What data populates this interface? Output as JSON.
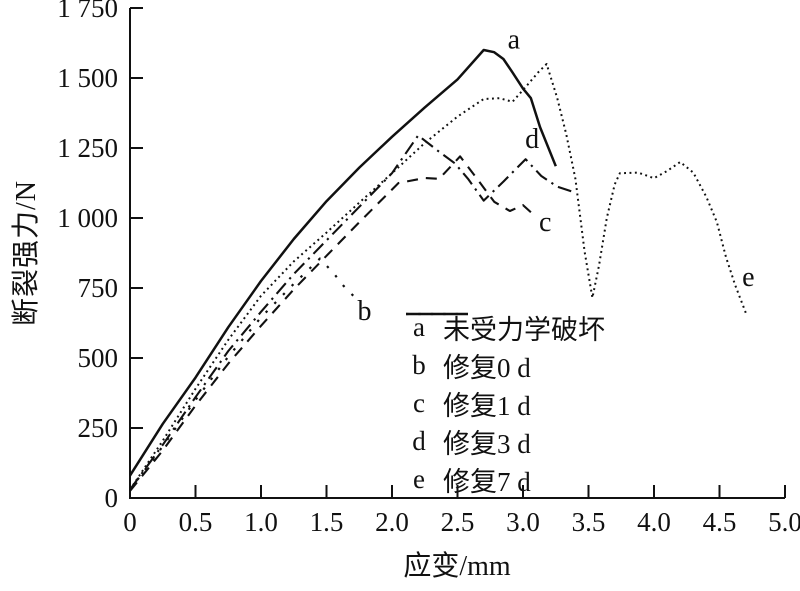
{
  "figure": {
    "background": "#ffffff",
    "ink": "#111111"
  },
  "y_axis": {
    "title": "断裂强力/N",
    "ticks": [
      {
        "v": 0,
        "label": "0"
      },
      {
        "v": 250,
        "label": "250"
      },
      {
        "v": 500,
        "label": "500"
      },
      {
        "v": 750,
        "label": "750"
      },
      {
        "v": 1000,
        "label": "1 000"
      },
      {
        "v": 1250,
        "label": "1 250"
      },
      {
        "v": 1500,
        "label": "1 500"
      },
      {
        "v": 1750,
        "label": "1 750"
      }
    ]
  },
  "x_axis": {
    "title": "应变/mm",
    "ticks": [
      {
        "v": 0,
        "label": "0"
      },
      {
        "v": 0.5,
        "label": "0.5"
      },
      {
        "v": 1.0,
        "label": "1.0"
      },
      {
        "v": 1.5,
        "label": "1.5"
      },
      {
        "v": 2.0,
        "label": "2.0"
      },
      {
        "v": 2.5,
        "label": "2.5"
      },
      {
        "v": 3.0,
        "label": "3.0"
      },
      {
        "v": 3.5,
        "label": "3.5"
      },
      {
        "v": 4.0,
        "label": "4.0"
      },
      {
        "v": 4.5,
        "label": "4.5"
      },
      {
        "v": 5.0,
        "label": "5.0"
      }
    ]
  },
  "curve_labels": [
    {
      "text": "a",
      "x": 2.93,
      "y": 1638
    },
    {
      "text": "b",
      "x": 1.79,
      "y": 668
    },
    {
      "text": "c",
      "x": 3.17,
      "y": 985
    },
    {
      "text": "d",
      "x": 3.07,
      "y": 1282
    },
    {
      "text": "e",
      "x": 4.72,
      "y": 790
    }
  ],
  "chart_data": {
    "type": "line",
    "title": "",
    "xlabel": "应变/mm",
    "ylabel": "断裂强力/N",
    "xlim": [
      0,
      5.0
    ],
    "ylim": [
      0,
      1750
    ],
    "grid": false,
    "legend_position": "inside lower-right",
    "series": [
      {
        "letter": "a",
        "name": "未受力学破坏",
        "style": "solid",
        "points": [
          [
            0,
            80
          ],
          [
            0.25,
            265
          ],
          [
            0.5,
            430
          ],
          [
            0.75,
            610
          ],
          [
            1.0,
            775
          ],
          [
            1.25,
            925
          ],
          [
            1.5,
            1060
          ],
          [
            1.75,
            1180
          ],
          [
            2.0,
            1290
          ],
          [
            2.25,
            1395
          ],
          [
            2.5,
            1495
          ],
          [
            2.7,
            1600
          ],
          [
            2.78,
            1592
          ],
          [
            2.85,
            1568
          ],
          [
            2.92,
            1520
          ],
          [
            3.0,
            1462
          ],
          [
            3.06,
            1428
          ],
          [
            3.13,
            1325
          ],
          [
            3.25,
            1185
          ]
        ]
      },
      {
        "letter": "b",
        "name": "修复0 d",
        "style": "sparse-dot",
        "points": [
          [
            0,
            30
          ],
          [
            0.25,
            185
          ],
          [
            0.5,
            350
          ],
          [
            0.75,
            505
          ],
          [
            1.0,
            645
          ],
          [
            1.25,
            765
          ],
          [
            1.45,
            855
          ],
          [
            1.55,
            805
          ],
          [
            1.63,
            758
          ],
          [
            1.72,
            715
          ]
        ]
      },
      {
        "letter": "c",
        "name": "修复1 d",
        "style": "dash",
        "points": [
          [
            0,
            25
          ],
          [
            0.25,
            170
          ],
          [
            0.5,
            330
          ],
          [
            0.75,
            480
          ],
          [
            1.0,
            615
          ],
          [
            1.25,
            745
          ],
          [
            1.5,
            865
          ],
          [
            1.75,
            985
          ],
          [
            2.05,
            1125
          ],
          [
            2.25,
            1143
          ],
          [
            2.36,
            1140
          ],
          [
            2.52,
            1220
          ],
          [
            2.65,
            1140
          ],
          [
            2.78,
            1058
          ],
          [
            2.9,
            1025
          ],
          [
            3.0,
            1046
          ],
          [
            3.08,
            1012
          ]
        ]
      },
      {
        "letter": "d",
        "name": "修复3 d",
        "style": "dash-dot",
        "points": [
          [
            0,
            30
          ],
          [
            0.25,
            190
          ],
          [
            0.5,
            360
          ],
          [
            0.75,
            525
          ],
          [
            1.0,
            665
          ],
          [
            1.25,
            800
          ],
          [
            1.5,
            920
          ],
          [
            1.75,
            1040
          ],
          [
            2.0,
            1160
          ],
          [
            2.2,
            1295
          ],
          [
            2.35,
            1240
          ],
          [
            2.48,
            1195
          ],
          [
            2.58,
            1140
          ],
          [
            2.7,
            1062
          ],
          [
            2.85,
            1130
          ],
          [
            3.02,
            1210
          ],
          [
            3.14,
            1150
          ],
          [
            3.26,
            1112
          ],
          [
            3.37,
            1095
          ]
        ]
      },
      {
        "letter": "e",
        "name": "修复7 d",
        "style": "dense-dot",
        "points": [
          [
            0,
            30
          ],
          [
            0.25,
            205
          ],
          [
            0.5,
            390
          ],
          [
            0.75,
            565
          ],
          [
            1.0,
            722
          ],
          [
            1.25,
            845
          ],
          [
            1.5,
            948
          ],
          [
            1.75,
            1055
          ],
          [
            2.0,
            1160
          ],
          [
            2.25,
            1268
          ],
          [
            2.5,
            1362
          ],
          [
            2.7,
            1425
          ],
          [
            2.82,
            1428
          ],
          [
            2.92,
            1415
          ],
          [
            3.02,
            1468
          ],
          [
            3.12,
            1522
          ],
          [
            3.18,
            1550
          ],
          [
            3.26,
            1430
          ],
          [
            3.33,
            1300
          ],
          [
            3.4,
            1140
          ],
          [
            3.47,
            880
          ],
          [
            3.53,
            715
          ],
          [
            3.58,
            830
          ],
          [
            3.64,
            1000
          ],
          [
            3.7,
            1120
          ],
          [
            3.74,
            1160
          ],
          [
            3.88,
            1162
          ],
          [
            4.0,
            1142
          ],
          [
            4.1,
            1168
          ],
          [
            4.2,
            1200
          ],
          [
            4.3,
            1162
          ],
          [
            4.4,
            1075
          ],
          [
            4.48,
            985
          ],
          [
            4.55,
            860
          ],
          [
            4.62,
            760
          ],
          [
            4.71,
            650
          ]
        ]
      }
    ]
  }
}
